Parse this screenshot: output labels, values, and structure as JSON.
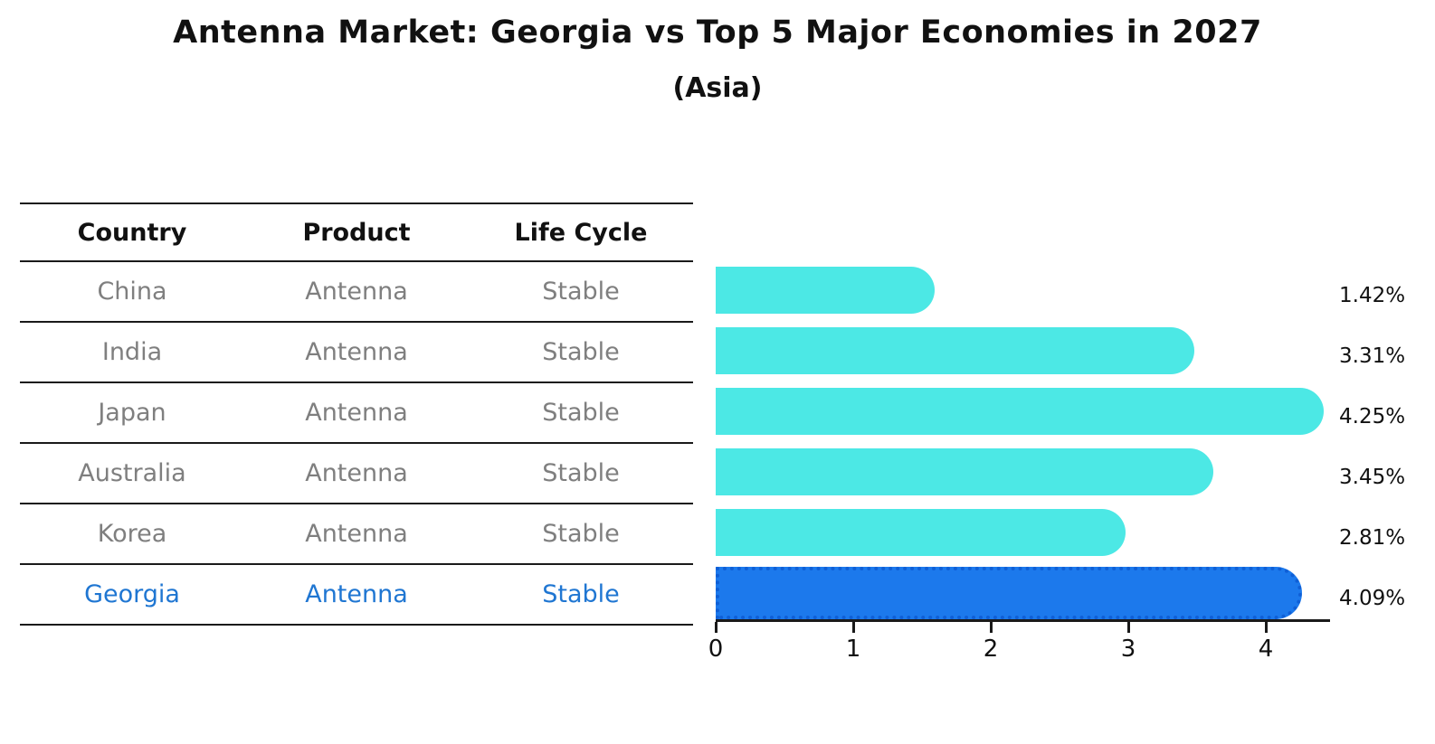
{
  "title": "Antenna Market: Georgia vs Top 5 Major Economies in 2027",
  "subtitle": "(Asia)",
  "table": {
    "headers": [
      "Country",
      "Product",
      "Life Cycle"
    ],
    "rows": [
      {
        "country": "China",
        "product": "Antenna",
        "life_cycle": "Stable",
        "highlight": false
      },
      {
        "country": "India",
        "product": "Antenna",
        "life_cycle": "Stable",
        "highlight": false
      },
      {
        "country": "Japan",
        "product": "Antenna",
        "life_cycle": "Stable",
        "highlight": false
      },
      {
        "country": "Australia",
        "product": "Antenna",
        "life_cycle": "Stable",
        "highlight": false
      },
      {
        "country": "Korea",
        "product": "Antenna",
        "life_cycle": "Stable",
        "highlight": false
      },
      {
        "country": "Georgia",
        "product": "Antenna",
        "life_cycle": "Stable",
        "highlight": true
      }
    ]
  },
  "chart_data": {
    "type": "bar",
    "orientation": "horizontal",
    "categories": [
      "China",
      "India",
      "Japan",
      "Australia",
      "Korea",
      "Georgia"
    ],
    "values": [
      1.42,
      3.31,
      4.25,
      3.45,
      2.81,
      4.09
    ],
    "value_labels": [
      "1.42%",
      "3.31%",
      "4.25%",
      "3.45%",
      "2.81%",
      "4.09%"
    ],
    "x_ticks": [
      0,
      1,
      2,
      3,
      4
    ],
    "xlim": [
      0,
      4.47
    ],
    "grid": false,
    "legend": "none",
    "highlight_index": 5,
    "title": "Antenna Market: Georgia vs Top 5 Major Economies in 2027",
    "subtitle": "(Asia)",
    "xlabel": "",
    "ylabel": ""
  },
  "colors": {
    "background": "#ffffff",
    "text": "#111111",
    "muted_text": "#7f7f7f",
    "line": "#1a1a1a",
    "bar": "#4CE8E5",
    "highlight_bar": "#1C79EC",
    "highlight_bar_edge": "#0F5FD6",
    "highlight_text": "#1F76D2"
  }
}
